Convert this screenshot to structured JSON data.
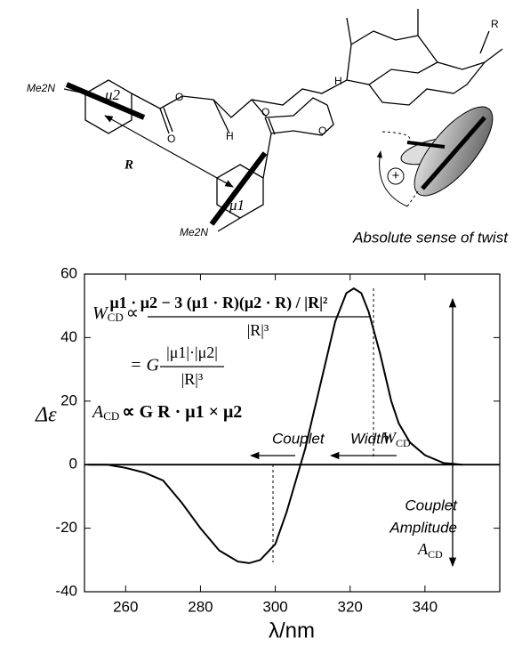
{
  "diagram": {
    "amine_left": "Me2N",
    "mu2": "μ2",
    "distance": "R",
    "mu1": "μ1",
    "amine_right": "Me2N",
    "h_left": "H",
    "h_top": "H",
    "substituent": "R",
    "oxygens": [
      "O",
      "O",
      "O",
      "O"
    ],
    "plus": "+",
    "twist_caption": "Absolute sense of twist"
  },
  "chart_data": {
    "type": "line",
    "xlabel": "λ/nm",
    "ylabel": "Δε",
    "x": [
      250,
      255,
      260,
      265,
      270,
      275,
      280,
      285,
      290,
      293,
      296,
      300,
      303,
      306,
      308,
      310,
      313,
      316,
      319,
      321,
      323,
      325,
      328,
      331,
      333,
      336,
      340,
      345,
      350
    ],
    "series": [
      {
        "color": "#000000",
        "values": [
          0,
          0,
          -1,
          -2.5,
          -5,
          -12,
          -20,
          -27,
          -30.5,
          -31,
          -30,
          -25,
          -15,
          -3,
          5,
          15,
          30,
          45,
          54,
          55.5,
          54,
          48,
          35,
          20,
          13,
          7,
          3,
          0.5,
          0
        ]
      }
    ],
    "xlim": [
      249,
      360
    ],
    "ylim": [
      -40,
      60
    ],
    "xticks": [
      260,
      280,
      300,
      320,
      340
    ],
    "yticks": [
      -40,
      -20,
      0,
      20,
      40,
      60
    ],
    "formula": {
      "w": "W",
      "cd": "CD",
      "prop": "∝",
      "numerator": "μ1 · μ2 − 3 (μ1 · R)(μ2 · R) / |R|²",
      "denominator": "|R|³",
      "eq2": "= G",
      "numerator2": "|μ1|·|μ2|",
      "denominator2": "|R|³",
      "a": "A",
      "cd2": "CD",
      "rhs3": "∝ G R · μ1 × μ2"
    },
    "annotations": {
      "couplet": "Couplet",
      "width": "Width",
      "w": "W",
      "w_sub": "CD",
      "couplet2": "Couplet",
      "amplitude": "Amplitude",
      "a": "A",
      "a_sub": "CD"
    }
  }
}
